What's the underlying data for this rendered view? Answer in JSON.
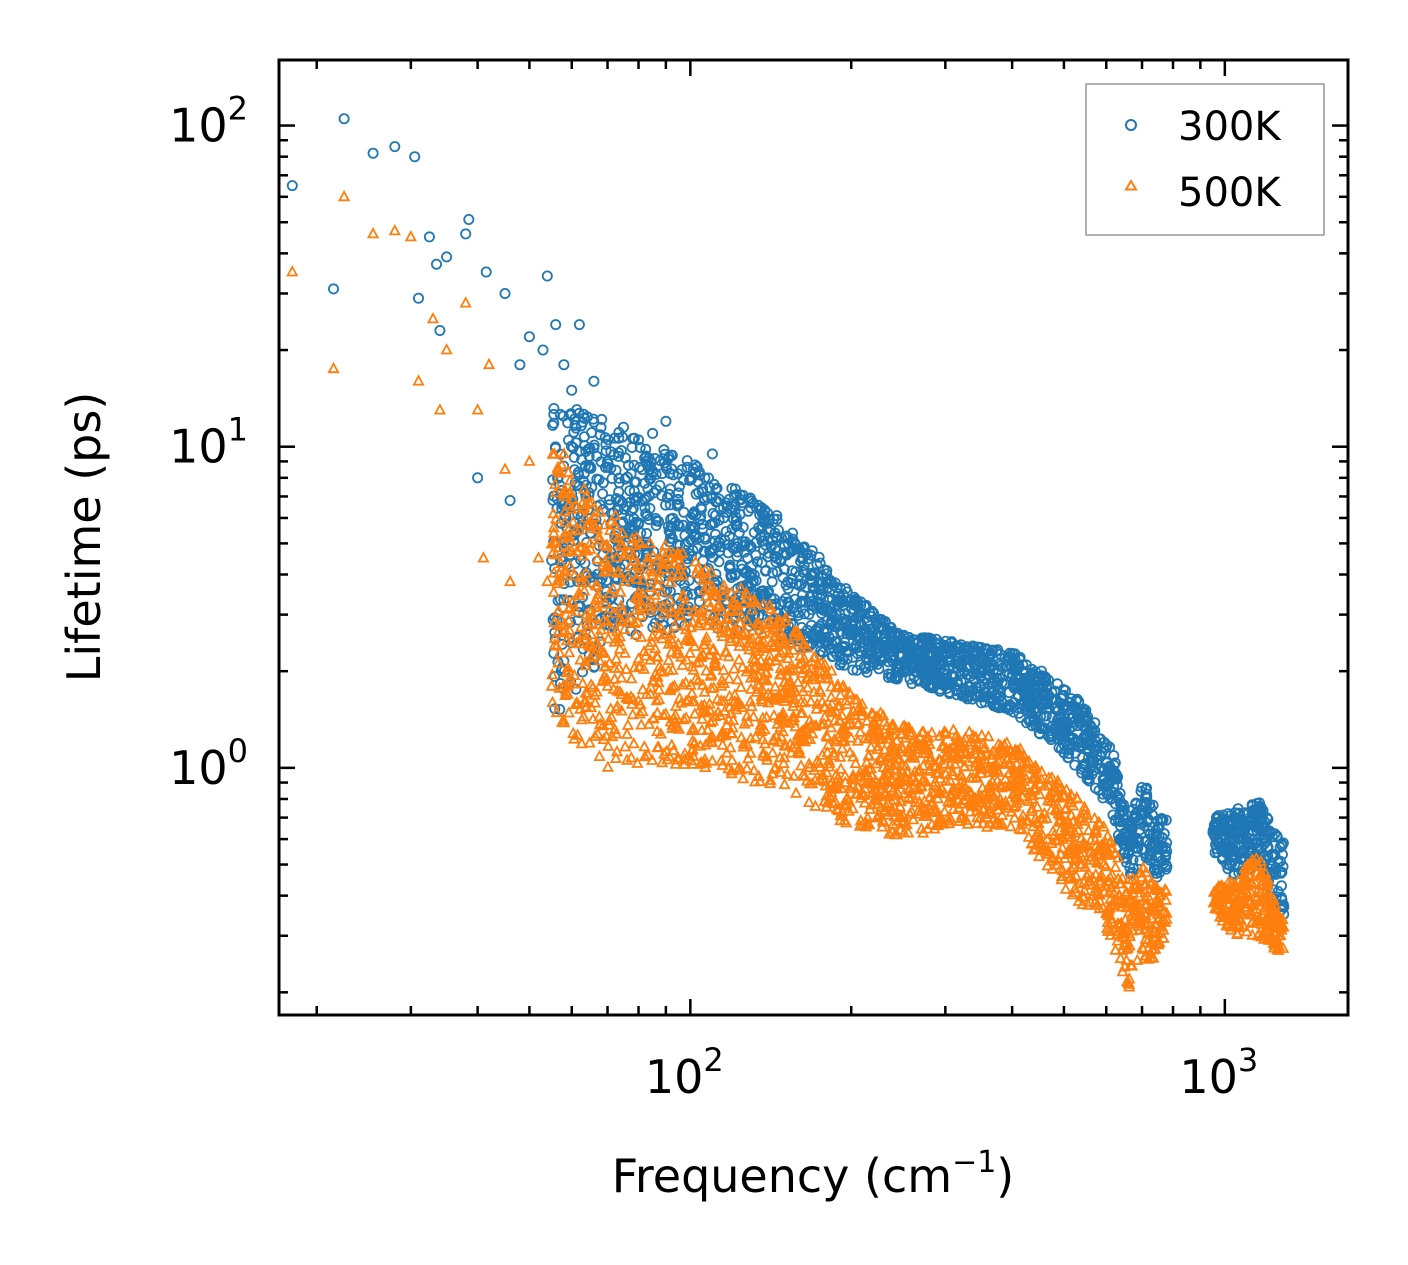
{
  "chart_data": {
    "type": "scatter",
    "title": "",
    "xlabel": "Frequency (cm",
    "xlabel_sup": "−1",
    "xlabel_close": ")",
    "ylabel": "Lifetime (ps)",
    "xscale": "log",
    "yscale": "log",
    "xlim": [
      17,
      1700
    ],
    "ylim": [
      0.17,
      160
    ],
    "x_ticks": [
      {
        "base": "10",
        "exp": "2",
        "value": 100
      },
      {
        "base": "10",
        "exp": "3",
        "value": 1000
      }
    ],
    "y_ticks": [
      {
        "base": "10",
        "exp": "0",
        "value": 1
      },
      {
        "base": "10",
        "exp": "1",
        "value": 10
      },
      {
        "base": "10",
        "exp": "2",
        "value": 100
      }
    ],
    "legend_position": "top-right",
    "colors": {
      "series_300K": "#1f77b4",
      "series_500K": "#ff7f0e",
      "axis": "#000000",
      "legend_border": "#999999"
    },
    "series": [
      {
        "name": "300K",
        "marker": "circle",
        "color": "#1f77b4",
        "anchor_points": [
          [
            18,
            65
          ],
          [
            21.5,
            31
          ],
          [
            22.5,
            105
          ],
          [
            25.5,
            82
          ],
          [
            28,
            86
          ],
          [
            30.5,
            80
          ],
          [
            31,
            29
          ],
          [
            32.5,
            45
          ],
          [
            33.5,
            37
          ],
          [
            34,
            23
          ],
          [
            35,
            39
          ],
          [
            38,
            46
          ],
          [
            38.5,
            51
          ],
          [
            40,
            8
          ],
          [
            41.5,
            35
          ],
          [
            45,
            30
          ],
          [
            46,
            6.8
          ],
          [
            48,
            18
          ],
          [
            50,
            22
          ],
          [
            53,
            20
          ],
          [
            54,
            34
          ],
          [
            56,
            24
          ],
          [
            58,
            18
          ],
          [
            60,
            15
          ],
          [
            62,
            24
          ],
          [
            66,
            16
          ],
          [
            70,
            9
          ],
          [
            75,
            11.5
          ],
          [
            80,
            10.5
          ],
          [
            85,
            11
          ],
          [
            90,
            12
          ],
          [
            100,
            8
          ],
          [
            110,
            9.5
          ],
          [
            120,
            6.5
          ]
        ],
        "band": [
          [
            55,
            1.4,
            14
          ],
          [
            70,
            2.3,
            12
          ],
          [
            100,
            2.8,
            9
          ],
          [
            150,
            2.5,
            6
          ],
          [
            200,
            2.0,
            3.5
          ],
          [
            250,
            1.85,
            2.6
          ],
          [
            300,
            1.7,
            2.5
          ],
          [
            400,
            1.5,
            2.3
          ],
          [
            500,
            1.1,
            1.8
          ],
          [
            560,
            0.9,
            1.5
          ],
          [
            620,
            0.7,
            1.1
          ],
          [
            660,
            0.45,
            0.65
          ],
          [
            700,
            0.5,
            0.95
          ],
          [
            750,
            0.45,
            0.7
          ],
          [
            950,
            0.55,
            0.7
          ],
          [
            1050,
            0.45,
            0.75
          ],
          [
            1150,
            0.5,
            0.8
          ],
          [
            1290,
            0.33,
            0.6
          ]
        ]
      },
      {
        "name": "500K",
        "marker": "triangle",
        "color": "#ff7f0e",
        "anchor_points": [
          [
            18,
            35
          ],
          [
            21.5,
            17.5
          ],
          [
            22.5,
            60
          ],
          [
            25.5,
            46
          ],
          [
            28,
            47
          ],
          [
            30,
            45
          ],
          [
            31,
            16
          ],
          [
            33,
            25
          ],
          [
            34,
            13
          ],
          [
            35,
            20
          ],
          [
            38,
            28
          ],
          [
            40,
            13
          ],
          [
            41,
            4.5
          ],
          [
            42,
            18
          ],
          [
            45,
            8.5
          ],
          [
            46,
            3.8
          ],
          [
            50,
            9
          ],
          [
            52,
            4.5
          ],
          [
            54,
            3.8
          ],
          [
            56,
            5
          ],
          [
            58,
            9.5
          ],
          [
            60,
            2.5
          ],
          [
            62,
            5.5
          ],
          [
            65,
            2.2
          ]
        ],
        "band": [
          [
            55,
            1.5,
            10
          ],
          [
            65,
            1.0,
            7
          ],
          [
            100,
            1.0,
            4.5
          ],
          [
            150,
            0.85,
            3.0
          ],
          [
            200,
            0.65,
            1.7
          ],
          [
            250,
            0.6,
            1.35
          ],
          [
            300,
            0.65,
            1.35
          ],
          [
            400,
            0.65,
            1.2
          ],
          [
            500,
            0.42,
            0.9
          ],
          [
            600,
            0.32,
            0.65
          ],
          [
            660,
            0.2,
            0.45
          ],
          [
            700,
            0.25,
            0.5
          ],
          [
            750,
            0.25,
            0.42
          ],
          [
            950,
            0.35,
            0.42
          ],
          [
            1050,
            0.3,
            0.45
          ],
          [
            1150,
            0.3,
            0.55
          ],
          [
            1290,
            0.26,
            0.33
          ]
        ]
      }
    ]
  }
}
